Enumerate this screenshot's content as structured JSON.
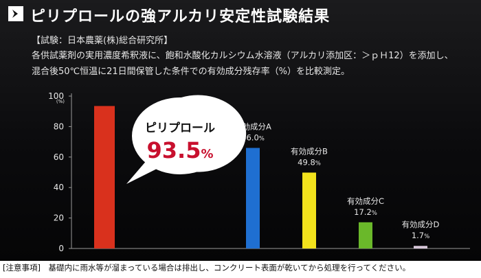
{
  "header": {
    "title": "ピリプロールの強アルカリ安定性試験結果",
    "source": "【試験：日本農薬(株)総合研究所】",
    "description_line1": "各供試薬剤の実用濃度希釈液に、飽和水酸化カルシウム水溶液（アルカリ添加区：＞ｐＨ12）を添加し、",
    "description_line2": "混合後50℃恒温に21日間保管した条件での有効成分残存率（%）を比較測定。"
  },
  "callout": {
    "product": "ピリプロール",
    "value": "93.5",
    "unit": "%"
  },
  "footnote": "[注意事項]　基礎内に雨水等が溜まっている場合は排出し、コンクリート表面が乾いてから処理を行ってください。",
  "colors": {
    "background": "#0b0b0d",
    "callout_text": "#c8102e"
  },
  "chart_data": {
    "type": "bar",
    "ylabel": "(%)",
    "ylim": [
      0,
      100
    ],
    "yticks": [
      0,
      20,
      40,
      60,
      80,
      100
    ],
    "grid": false,
    "legend": "none",
    "categories": [
      "ピリプロール",
      "有効成分A",
      "有効成分B",
      "有効成分C",
      "有効成分D"
    ],
    "values": [
      93.5,
      66.0,
      49.8,
      17.2,
      1.7
    ],
    "value_labels": [
      "",
      "66.0%",
      "49.8%",
      "17.2%",
      "1.7%"
    ],
    "category_labels": [
      "",
      "有効成分A",
      "有効成分B",
      "有効成分C",
      "有効成分D"
    ],
    "colors": [
      "#d9311d",
      "#1f6fd1",
      "#f2e21c",
      "#6ab82a",
      "#d6c6d8"
    ]
  }
}
